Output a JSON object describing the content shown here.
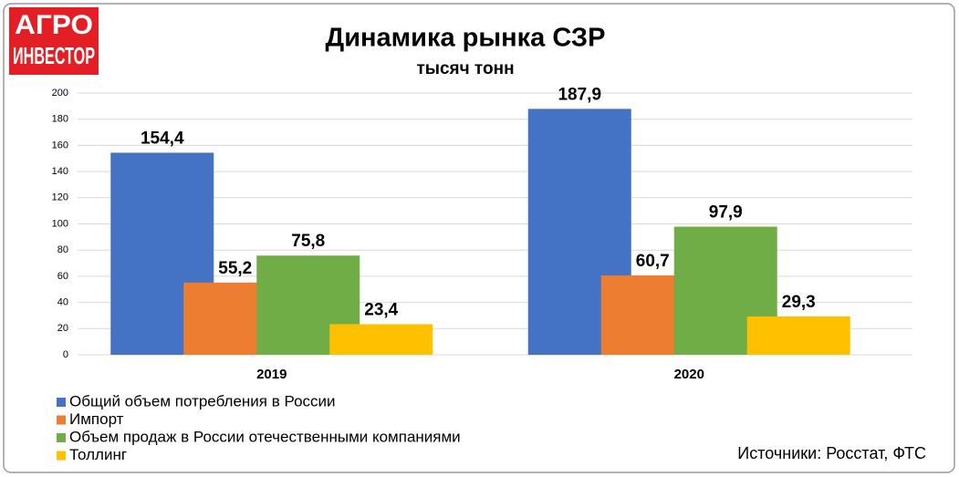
{
  "logo": [
    "АГРО",
    "ИНВЕСТОР"
  ],
  "chart_data": {
    "type": "bar",
    "title": "Динамика рынка СЗР",
    "subtitle": "тысяч тонн",
    "categories": [
      "2019",
      "2020"
    ],
    "series": [
      {
        "name": "Общий объем потребления в России",
        "color": "#4472c4",
        "values": [
          154.4,
          187.9
        ],
        "value_labels": [
          "154,4",
          "187,9"
        ]
      },
      {
        "name": "Импорт",
        "color": "#ed7d31",
        "values": [
          55.2,
          60.7
        ],
        "value_labels": [
          "55,2",
          "60,7"
        ]
      },
      {
        "name": "Объем продаж в России отечественными компаниями",
        "color": "#70ad47",
        "values": [
          75.8,
          97.9
        ],
        "value_labels": [
          "75,8",
          "97,9"
        ]
      },
      {
        "name": "Толлинг",
        "color": "#ffc000",
        "values": [
          23.4,
          29.3
        ],
        "value_labels": [
          "23,4",
          "29,3"
        ]
      }
    ],
    "ylim": [
      0,
      200
    ],
    "yticks": [
      0,
      20,
      40,
      60,
      80,
      100,
      120,
      140,
      160,
      180,
      200
    ],
    "grid": true,
    "source": "Источники: Росстат, ФТС"
  }
}
